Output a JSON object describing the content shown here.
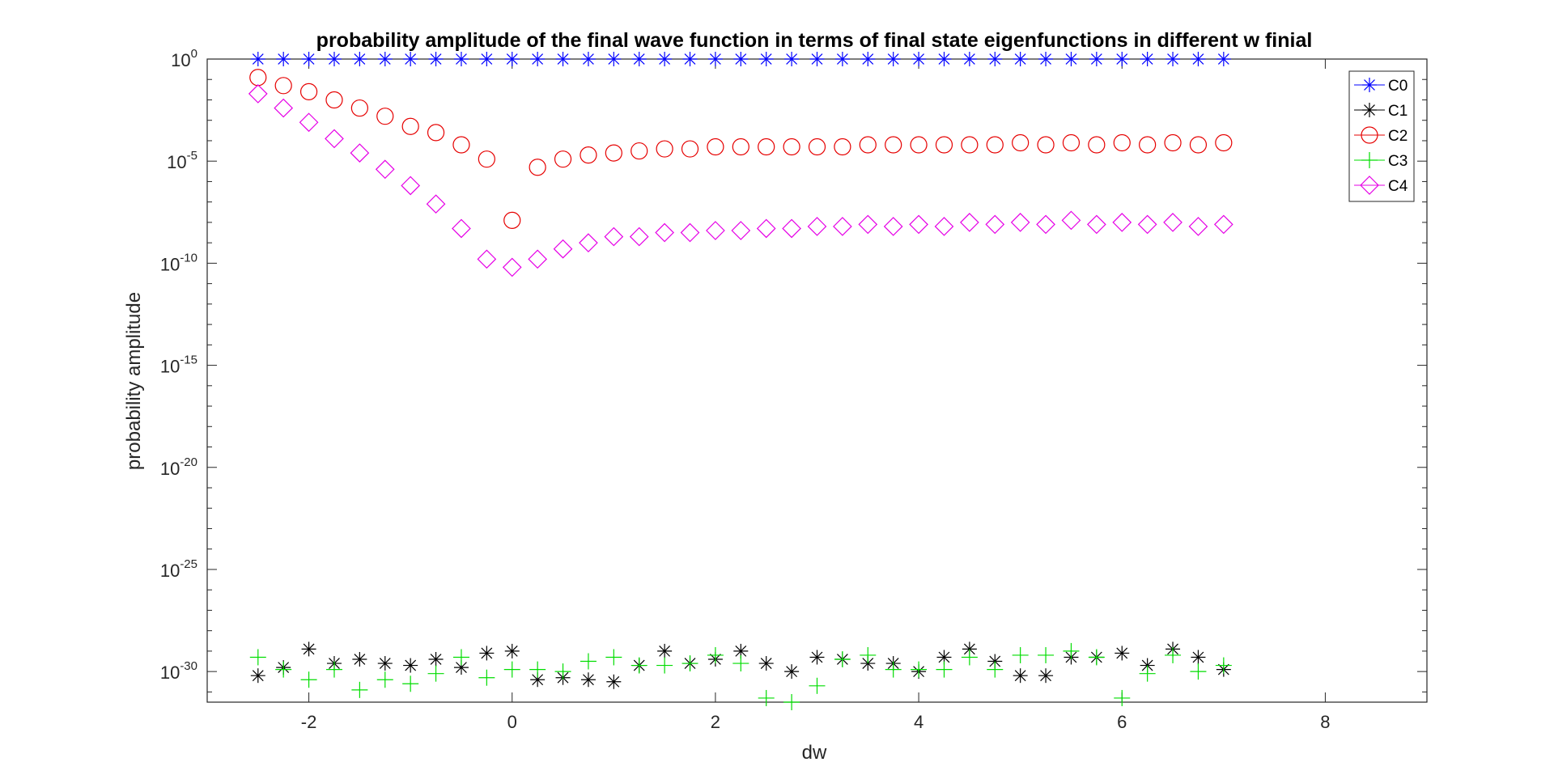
{
  "chart_data": {
    "type": "scatter",
    "title": "probability amplitude of the final wave function in terms of final state eigenfunctions in different w finial",
    "xlabel": "dw",
    "ylabel": "probability amplitude",
    "xlim": [
      -3,
      9
    ],
    "ylim_log10": [
      -31.5,
      0
    ],
    "yscale": "log",
    "x_ticks": [
      -2,
      0,
      2,
      4,
      6,
      8
    ],
    "y_ticks": [
      {
        "base": "10",
        "exp": "0",
        "value": 0
      },
      {
        "base": "10",
        "exp": "-5",
        "value": -5
      },
      {
        "base": "10",
        "exp": "-10",
        "value": -10
      },
      {
        "base": "10",
        "exp": "-15",
        "value": -15
      },
      {
        "base": "10",
        "exp": "-20",
        "value": -20
      },
      {
        "base": "10",
        "exp": "-25",
        "value": -25
      },
      {
        "base": "10",
        "exp": "-30",
        "value": -30
      }
    ],
    "legend_position": "top-right",
    "x": [
      -2.5,
      -2.25,
      -2,
      -1.75,
      -1.5,
      -1.25,
      -1,
      -0.75,
      -0.5,
      -0.25,
      0,
      0.25,
      0.5,
      0.75,
      1,
      1.25,
      1.5,
      1.75,
      2,
      2.25,
      2.5,
      2.75,
      3,
      3.25,
      3.5,
      3.75,
      4,
      4.25,
      4.5,
      4.75,
      5,
      5.25,
      5.5,
      5.75,
      6,
      6.25,
      6.5,
      6.75,
      7
    ],
    "series": [
      {
        "name": "C0",
        "color": "#0000ff",
        "marker": "asterisk",
        "log10_values": [
          0,
          0,
          0,
          0,
          0,
          0,
          0,
          0,
          0,
          0,
          0,
          0,
          0,
          0,
          0,
          0,
          0,
          0,
          0,
          0,
          0,
          0,
          0,
          0,
          0,
          0,
          0,
          0,
          0,
          0,
          0,
          0,
          0,
          0,
          0,
          0,
          0,
          0,
          0
        ]
      },
      {
        "name": "C1",
        "color": "#000000",
        "marker": "asterisk",
        "log10_values": [
          -30.2,
          -29.8,
          -28.9,
          -29.6,
          -29.4,
          -29.6,
          -29.7,
          -29.4,
          -29.8,
          -29.1,
          -29.0,
          -30.4,
          -30.3,
          -30.4,
          -30.5,
          -29.7,
          -29.0,
          -29.6,
          -29.4,
          -29.0,
          -29.6,
          -30.0,
          -29.3,
          -29.4,
          -29.6,
          -29.6,
          -30.0,
          -29.3,
          -28.9,
          -29.5,
          -30.2,
          -30.2,
          -29.3,
          -29.3,
          -29.1,
          -29.7,
          -28.9,
          -29.3,
          -29.9
        ]
      },
      {
        "name": "C2",
        "color": "#e60000",
        "marker": "circle",
        "log10_values": [
          -0.9,
          -1.3,
          -1.6,
          -2.0,
          -2.4,
          -2.8,
          -3.3,
          -3.6,
          -4.2,
          -4.9,
          -7.9,
          -5.3,
          -4.9,
          -4.7,
          -4.6,
          -4.5,
          -4.4,
          -4.4,
          -4.3,
          -4.3,
          -4.3,
          -4.3,
          -4.3,
          -4.3,
          -4.2,
          -4.2,
          -4.2,
          -4.2,
          -4.2,
          -4.2,
          -4.1,
          -4.2,
          -4.1,
          -4.2,
          -4.1,
          -4.2,
          -4.1,
          -4.2,
          -4.1
        ]
      },
      {
        "name": "C3",
        "color": "#00dd00",
        "marker": "plus",
        "log10_values": [
          -29.3,
          -29.9,
          -30.4,
          -29.9,
          -30.9,
          -30.4,
          -30.6,
          -30.1,
          -29.3,
          -30.3,
          -29.9,
          -29.9,
          -30.0,
          -29.5,
          -29.3,
          -29.7,
          -29.7,
          -29.6,
          -29.2,
          -29.6,
          -31.3,
          -31.5,
          -30.7,
          -29.4,
          -29.2,
          -29.9,
          -29.9,
          -29.9,
          -29.3,
          -29.9,
          -29.2,
          -29.2,
          -29.0,
          -29.3,
          -31.3,
          -30.1,
          -29.2,
          -30.0,
          -29.7
        ]
      },
      {
        "name": "C4",
        "color": "#e600e6",
        "marker": "diamond",
        "log10_values": [
          -1.7,
          -2.4,
          -3.1,
          -3.9,
          -4.6,
          -5.4,
          -6.2,
          -7.1,
          -8.3,
          -9.8,
          -10.2,
          -9.8,
          -9.3,
          -9.0,
          -8.7,
          -8.7,
          -8.5,
          -8.5,
          -8.4,
          -8.4,
          -8.3,
          -8.3,
          -8.2,
          -8.2,
          -8.1,
          -8.2,
          -8.1,
          -8.2,
          -8.0,
          -8.1,
          -8.0,
          -8.1,
          -7.9,
          -8.1,
          -8.0,
          -8.1,
          -8.0,
          -8.2,
          -8.1
        ]
      }
    ]
  }
}
